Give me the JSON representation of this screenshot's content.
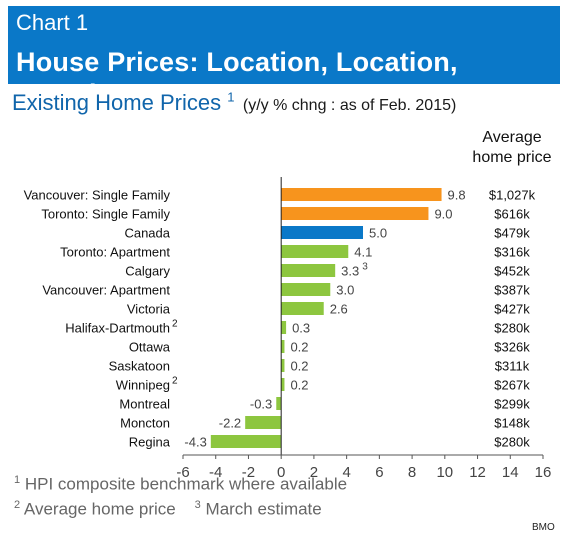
{
  "header": {
    "chart_number": "Chart 1",
    "title": "House Prices: Location, Location, Location"
  },
  "subtitle": {
    "text": "Existing Home Prices",
    "sup": "1",
    "note": "(y/y % chng : as of Feb. 2015)"
  },
  "avg_price_header": {
    "line1": "Average",
    "line2": "home price"
  },
  "footnotes": [
    {
      "sup": "1",
      "text": "HPI composite benchmark where available"
    },
    {
      "sup": "2",
      "text": "Average home price"
    },
    {
      "sup": "3",
      "text": "March estimate"
    }
  ],
  "source": "BMO",
  "colors": {
    "header_bg": "#0a78c8",
    "orange": "#f7941d",
    "blue": "#0a78c8",
    "green": "#8dc63f"
  },
  "chart_data": {
    "type": "bar",
    "orientation": "horizontal",
    "xlim": [
      -6,
      16
    ],
    "xticks": [
      -6,
      -4,
      -2,
      0,
      2,
      4,
      6,
      8,
      10,
      12,
      14,
      16
    ],
    "grid": false,
    "categories": [
      {
        "label": "Vancouver: Single Family",
        "sup": "",
        "value": 9.8,
        "value_label": "9.8",
        "value_sup": "",
        "price": "$1,027k",
        "color": "orange"
      },
      {
        "label": "Toronto: Single Family",
        "sup": "",
        "value": 9.0,
        "value_label": "9.0",
        "value_sup": "",
        "price": "$616k",
        "color": "orange"
      },
      {
        "label": "Canada",
        "sup": "",
        "value": 5.0,
        "value_label": "5.0",
        "value_sup": "",
        "price": "$479k",
        "color": "blue"
      },
      {
        "label": "Toronto: Apartment",
        "sup": "",
        "value": 4.1,
        "value_label": "4.1",
        "value_sup": "",
        "price": "$316k",
        "color": "green"
      },
      {
        "label": "Calgary",
        "sup": "",
        "value": 3.3,
        "value_label": "3.3",
        "value_sup": "3",
        "price": "$452k",
        "color": "green"
      },
      {
        "label": "Vancouver: Apartment",
        "sup": "",
        "value": 3.0,
        "value_label": "3.0",
        "value_sup": "",
        "price": "$387k",
        "color": "green"
      },
      {
        "label": "Victoria",
        "sup": "",
        "value": 2.6,
        "value_label": "2.6",
        "value_sup": "",
        "price": "$427k",
        "color": "green"
      },
      {
        "label": "Halifax-Dartmouth",
        "sup": "2",
        "value": 0.3,
        "value_label": "0.3",
        "value_sup": "",
        "price": "$280k",
        "color": "green"
      },
      {
        "label": "Ottawa",
        "sup": "",
        "value": 0.2,
        "value_label": "0.2",
        "value_sup": "",
        "price": "$326k",
        "color": "green"
      },
      {
        "label": "Saskatoon",
        "sup": "",
        "value": 0.2,
        "value_label": "0.2",
        "value_sup": "",
        "price": "$311k",
        "color": "green"
      },
      {
        "label": "Winnipeg",
        "sup": "2",
        "value": 0.2,
        "value_label": "0.2",
        "value_sup": "",
        "price": "$267k",
        "color": "green"
      },
      {
        "label": "Montreal",
        "sup": "",
        "value": -0.3,
        "value_label": "-0.3",
        "value_sup": "",
        "price": "$299k",
        "color": "green"
      },
      {
        "label": "Moncton",
        "sup": "",
        "value": -2.2,
        "value_label": "-2.2",
        "value_sup": "",
        "price": "$148k",
        "color": "green"
      },
      {
        "label": "Regina",
        "sup": "",
        "value": -4.3,
        "value_label": "-4.3",
        "value_sup": "",
        "price": "$280k",
        "color": "green"
      }
    ]
  }
}
